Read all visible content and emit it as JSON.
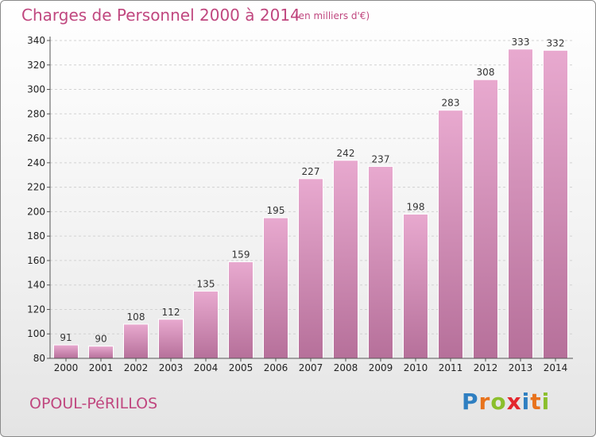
{
  "header": {
    "title": "Charges de Personnel 2000 à 2014",
    "subtitle": "(en milliers d'€)"
  },
  "footer": {
    "commune": "OPOUL-PéRILLOS",
    "brand_letters": [
      "P",
      "r",
      "o",
      "x",
      "i",
      "t",
      "i"
    ],
    "brand_colors": [
      "#2f7fc1",
      "#e8731c",
      "#8bbf2c",
      "#e3262d",
      "#2f7fc1",
      "#e8731c",
      "#8bbf2c"
    ]
  },
  "colors": {
    "bar_top": "#e8a9cf",
    "bar_bottom": "#b6709a",
    "title": "#c0477f"
  },
  "chart_data": {
    "type": "bar",
    "title": "Charges de Personnel 2000 à 2014",
    "subtitle": "(en milliers d'€)",
    "categories": [
      "2000",
      "2001",
      "2002",
      "2003",
      "2004",
      "2005",
      "2006",
      "2007",
      "2008",
      "2009",
      "2010",
      "2011",
      "2012",
      "2013",
      "2014"
    ],
    "values": [
      91,
      90,
      108,
      112,
      135,
      159,
      195,
      227,
      242,
      237,
      198,
      283,
      308,
      333,
      332
    ],
    "ylim": [
      80,
      340
    ],
    "yticks": [
      80,
      100,
      120,
      140,
      160,
      180,
      200,
      220,
      240,
      260,
      280,
      300,
      320,
      340
    ],
    "grid": true
  }
}
